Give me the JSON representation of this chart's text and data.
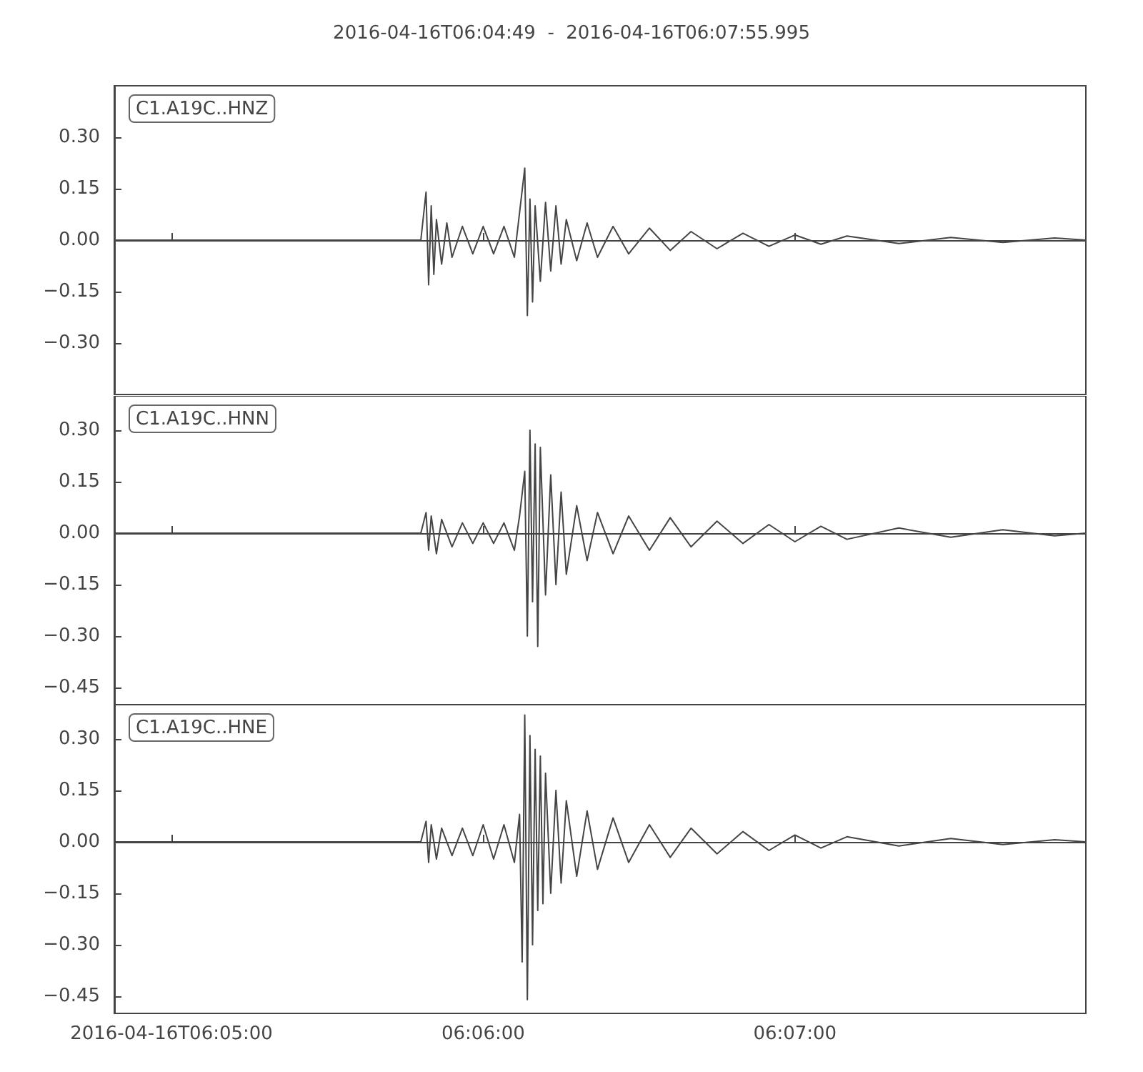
{
  "chart_data": [
    {
      "type": "line",
      "title": "2016-04-16T06:04:49  -  2016-04-16T06:07:55.995",
      "annotations": [
        "C1.A19C..HNZ"
      ],
      "color": "#454545",
      "tick_labels": "y",
      "xlim": [
        "2016-04-16T06:04:49",
        "2016-04-16T06:07:55.995"
      ],
      "xticks": [
        {
          "value": "2016-04-16T06:05:00",
          "label": null
        },
        {
          "value": "2016-04-16T06:06:00",
          "label": null
        },
        {
          "value": "2016-04-16T06:07:00",
          "label": null
        }
      ],
      "ylim": [
        -0.45,
        0.45
      ],
      "yticks": [
        {
          "value": -0.3,
          "label": "−0.30"
        },
        {
          "value": -0.15,
          "label": "−0.15"
        },
        {
          "value": 0,
          "label": "0.00"
        },
        {
          "value": 0.15,
          "label": "0.15"
        },
        {
          "value": 0.3,
          "label": "0.30"
        }
      ],
      "x": [
        "2016-04-16T06:04:49",
        "2016-04-16T06:05:48",
        "2016-04-16T06:05:49",
        "2016-04-16T06:05:49.5",
        "2016-04-16T06:05:50",
        "2016-04-16T06:05:50.5",
        "2016-04-16T06:05:51",
        "2016-04-16T06:05:52",
        "2016-04-16T06:05:53",
        "2016-04-16T06:05:54",
        "2016-04-16T06:05:56",
        "2016-04-16T06:05:58",
        "2016-04-16T06:06:00",
        "2016-04-16T06:06:02",
        "2016-04-16T06:06:04",
        "2016-04-16T06:06:06",
        "2016-04-16T06:06:07",
        "2016-04-16T06:06:08",
        "2016-04-16T06:06:08.5",
        "2016-04-16T06:06:09",
        "2016-04-16T06:06:09.5",
        "2016-04-16T06:06:10",
        "2016-04-16T06:06:11",
        "2016-04-16T06:06:12",
        "2016-04-16T06:06:13",
        "2016-04-16T06:06:14",
        "2016-04-16T06:06:15",
        "2016-04-16T06:06:16",
        "2016-04-16T06:06:18",
        "2016-04-16T06:06:20",
        "2016-04-16T06:06:22",
        "2016-04-16T06:06:25",
        "2016-04-16T06:06:28",
        "2016-04-16T06:06:32",
        "2016-04-16T06:06:36",
        "2016-04-16T06:06:40",
        "2016-04-16T06:06:45",
        "2016-04-16T06:06:50",
        "2016-04-16T06:06:55",
        "2016-04-16T06:07:00",
        "2016-04-16T06:07:05",
        "2016-04-16T06:07:10",
        "2016-04-16T06:07:20",
        "2016-04-16T06:07:30",
        "2016-04-16T06:07:40",
        "2016-04-16T06:07:50",
        "2016-04-16T06:07:55.995"
      ],
      "values": [
        0,
        0,
        0.14,
        -0.13,
        0.1,
        -0.1,
        0.06,
        -0.07,
        0.05,
        -0.05,
        0.04,
        -0.04,
        0.04,
        -0.04,
        0.04,
        -0.05,
        0.08,
        0.21,
        -0.22,
        0.12,
        -0.18,
        0.1,
        -0.12,
        0.11,
        -0.09,
        0.1,
        -0.07,
        0.06,
        -0.06,
        0.05,
        -0.05,
        0.04,
        -0.04,
        0.035,
        -0.03,
        0.025,
        -0.025,
        0.02,
        -0.018,
        0.015,
        -0.012,
        0.012,
        -0.01,
        0.008,
        -0.007,
        0.006,
        0
      ]
    },
    {
      "type": "line",
      "annotations": [
        "C1.A19C..HNN"
      ],
      "color": "#454545",
      "tick_labels": "y",
      "xlim": [
        "2016-04-16T06:04:49",
        "2016-04-16T06:07:55.995"
      ],
      "xticks": [
        {
          "value": "2016-04-16T06:05:00",
          "label": null
        },
        {
          "value": "2016-04-16T06:06:00",
          "label": null
        },
        {
          "value": "2016-04-16T06:07:00",
          "label": null
        }
      ],
      "ylim": [
        -0.5,
        0.4
      ],
      "yticks": [
        {
          "value": -0.45,
          "label": "−0.45"
        },
        {
          "value": -0.3,
          "label": "−0.30"
        },
        {
          "value": -0.15,
          "label": "−0.15"
        },
        {
          "value": 0,
          "label": "0.00"
        },
        {
          "value": 0.15,
          "label": "0.15"
        },
        {
          "value": 0.3,
          "label": "0.30"
        }
      ],
      "x": [
        "2016-04-16T06:04:49",
        "2016-04-16T06:05:48",
        "2016-04-16T06:05:49",
        "2016-04-16T06:05:49.5",
        "2016-04-16T06:05:50",
        "2016-04-16T06:05:51",
        "2016-04-16T06:05:52",
        "2016-04-16T06:05:54",
        "2016-04-16T06:05:56",
        "2016-04-16T06:05:58",
        "2016-04-16T06:06:00",
        "2016-04-16T06:06:02",
        "2016-04-16T06:06:04",
        "2016-04-16T06:06:06",
        "2016-04-16T06:06:07",
        "2016-04-16T06:06:08",
        "2016-04-16T06:06:08.5",
        "2016-04-16T06:06:09",
        "2016-04-16T06:06:09.5",
        "2016-04-16T06:06:10",
        "2016-04-16T06:06:10.5",
        "2016-04-16T06:06:11",
        "2016-04-16T06:06:12",
        "2016-04-16T06:06:13",
        "2016-04-16T06:06:14",
        "2016-04-16T06:06:15",
        "2016-04-16T06:06:16",
        "2016-04-16T06:06:18",
        "2016-04-16T06:06:20",
        "2016-04-16T06:06:22",
        "2016-04-16T06:06:25",
        "2016-04-16T06:06:28",
        "2016-04-16T06:06:32",
        "2016-04-16T06:06:36",
        "2016-04-16T06:06:40",
        "2016-04-16T06:06:45",
        "2016-04-16T06:06:50",
        "2016-04-16T06:06:55",
        "2016-04-16T06:07:00",
        "2016-04-16T06:07:05",
        "2016-04-16T06:07:10",
        "2016-04-16T06:07:20",
        "2016-04-16T06:07:30",
        "2016-04-16T06:07:40",
        "2016-04-16T06:07:50",
        "2016-04-16T06:07:55.995"
      ],
      "values": [
        0,
        0,
        0.06,
        -0.05,
        0.05,
        -0.06,
        0.04,
        -0.04,
        0.03,
        -0.03,
        0.03,
        -0.03,
        0.03,
        -0.05,
        0.05,
        0.18,
        -0.3,
        0.3,
        -0.2,
        0.26,
        -0.33,
        0.25,
        -0.18,
        0.17,
        -0.15,
        0.12,
        -0.12,
        0.08,
        -0.08,
        0.06,
        -0.06,
        0.05,
        -0.05,
        0.045,
        -0.04,
        0.035,
        -0.03,
        0.025,
        -0.025,
        0.02,
        -0.018,
        0.015,
        -0.012,
        0.01,
        -0.008,
        0
      ]
    },
    {
      "type": "line",
      "annotations": [
        "C1.A19C..HNE"
      ],
      "color": "#454545",
      "xlim": [
        "2016-04-16T06:04:49",
        "2016-04-16T06:07:55.995"
      ],
      "xticks": [
        {
          "value": "2016-04-16T06:05:00",
          "label": "2016-04-16T06:05:00"
        },
        {
          "value": "2016-04-16T06:06:00",
          "label": "06:06:00"
        },
        {
          "value": "2016-04-16T06:07:00",
          "label": "06:07:00"
        }
      ],
      "ylim": [
        -0.5,
        0.4
      ],
      "yticks": [
        {
          "value": -0.45,
          "label": "−0.45"
        },
        {
          "value": -0.3,
          "label": "−0.30"
        },
        {
          "value": -0.15,
          "label": "−0.15"
        },
        {
          "value": 0,
          "label": "0.00"
        },
        {
          "value": 0.15,
          "label": "0.15"
        },
        {
          "value": 0.3,
          "label": "0.30"
        }
      ],
      "x": [
        "2016-04-16T06:04:49",
        "2016-04-16T06:05:48",
        "2016-04-16T06:05:49",
        "2016-04-16T06:05:49.5",
        "2016-04-16T06:05:50",
        "2016-04-16T06:05:51",
        "2016-04-16T06:05:52",
        "2016-04-16T06:05:54",
        "2016-04-16T06:05:56",
        "2016-04-16T06:05:58",
        "2016-04-16T06:06:00",
        "2016-04-16T06:06:02",
        "2016-04-16T06:06:04",
        "2016-04-16T06:06:06",
        "2016-04-16T06:06:07",
        "2016-04-16T06:06:07.5",
        "2016-04-16T06:06:08",
        "2016-04-16T06:06:08.5",
        "2016-04-16T06:06:09",
        "2016-04-16T06:06:09.5",
        "2016-04-16T06:06:10",
        "2016-04-16T06:06:10.5",
        "2016-04-16T06:06:11",
        "2016-04-16T06:06:11.5",
        "2016-04-16T06:06:12",
        "2016-04-16T06:06:13",
        "2016-04-16T06:06:14",
        "2016-04-16T06:06:15",
        "2016-04-16T06:06:16",
        "2016-04-16T06:06:18",
        "2016-04-16T06:06:20",
        "2016-04-16T06:06:22",
        "2016-04-16T06:06:25",
        "2016-04-16T06:06:28",
        "2016-04-16T06:06:32",
        "2016-04-16T06:06:36",
        "2016-04-16T06:06:40",
        "2016-04-16T06:06:45",
        "2016-04-16T06:06:50",
        "2016-04-16T06:06:55",
        "2016-04-16T06:07:00",
        "2016-04-16T06:07:05",
        "2016-04-16T06:07:10",
        "2016-04-16T06:07:20",
        "2016-04-16T06:07:30",
        "2016-04-16T06:07:40",
        "2016-04-16T06:07:50",
        "2016-04-16T06:07:55.995"
      ],
      "values": [
        0,
        0,
        0.06,
        -0.06,
        0.05,
        -0.05,
        0.04,
        -0.04,
        0.04,
        -0.04,
        0.05,
        -0.05,
        0.05,
        -0.06,
        0.08,
        -0.35,
        0.37,
        -0.46,
        0.31,
        -0.3,
        0.27,
        -0.2,
        0.25,
        -0.18,
        0.2,
        -0.15,
        0.15,
        -0.12,
        0.12,
        -0.1,
        0.09,
        -0.08,
        0.07,
        -0.06,
        0.05,
        -0.045,
        0.04,
        -0.035,
        0.03,
        -0.025,
        0.02,
        -0.018,
        0.015,
        -0.012,
        0.01,
        -0.008,
        0.006,
        0
      ]
    }
  ]
}
